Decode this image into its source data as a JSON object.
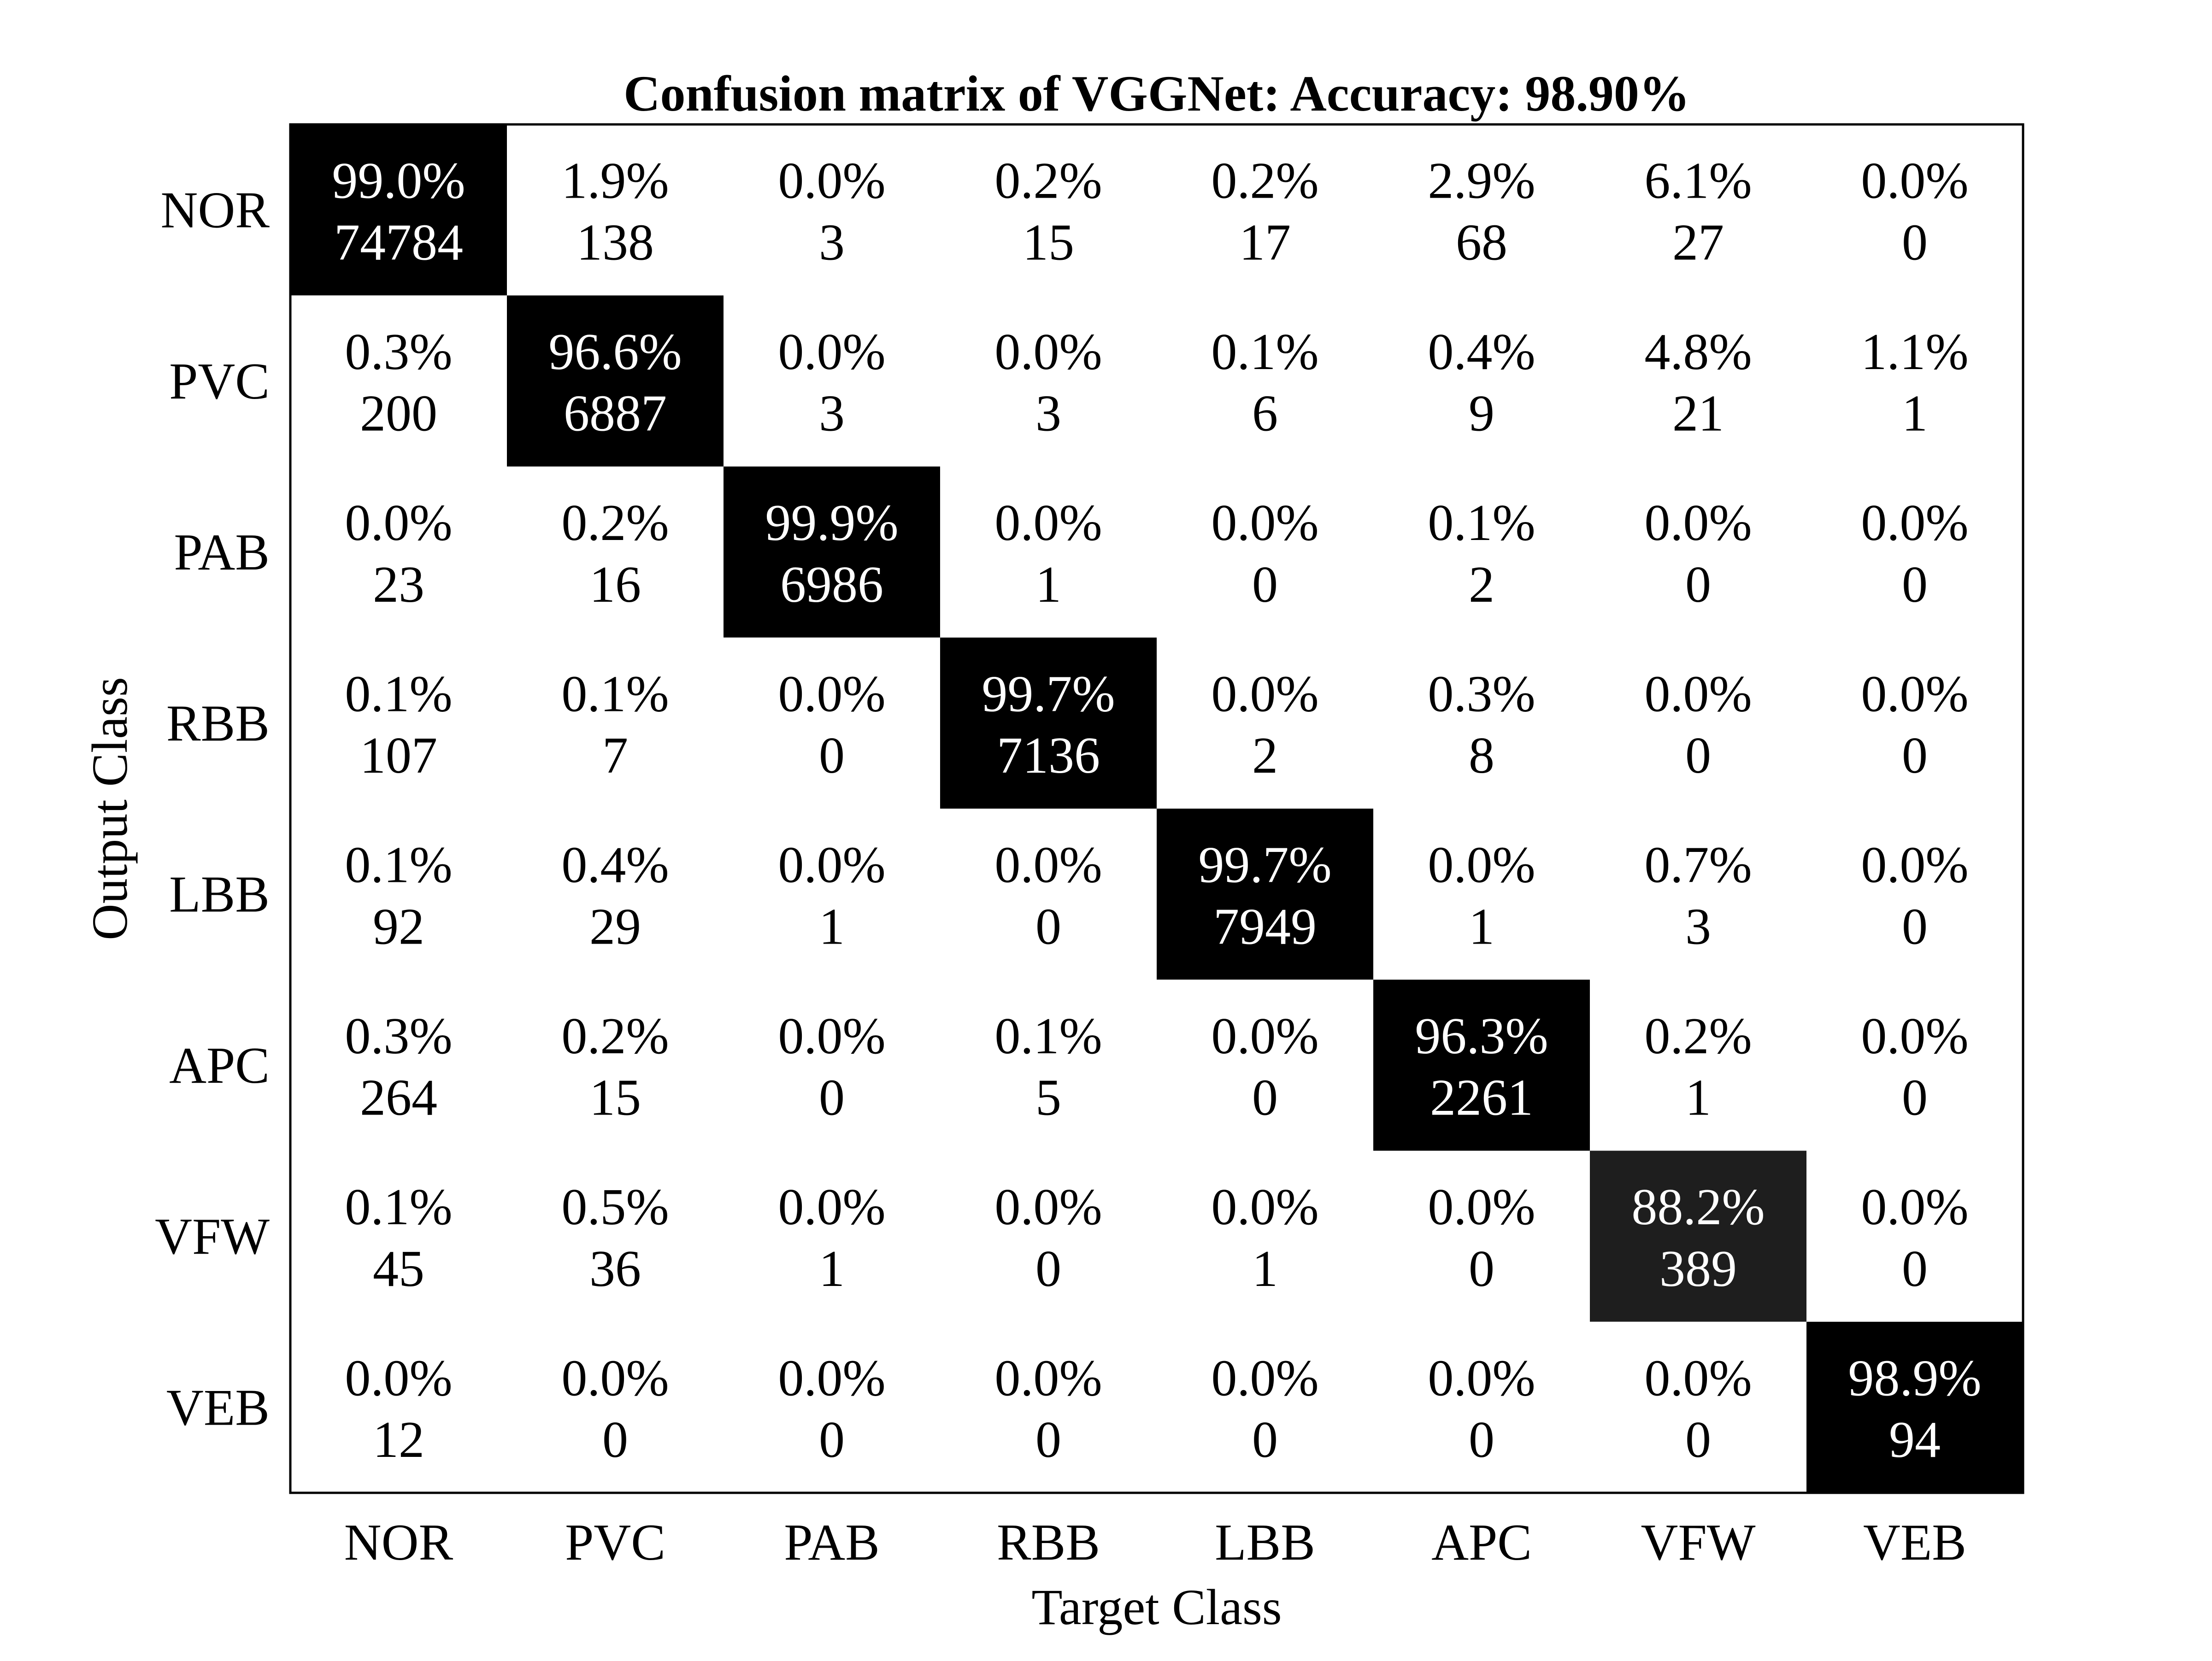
{
  "chart_data": {
    "type": "heatmap",
    "title": "Confusion matrix of VGGNet: Accuracy: 98.90%",
    "xlabel": "Target Class",
    "ylabel": "Output Class",
    "x_categories": [
      "NOR",
      "PVC",
      "PAB",
      "RBB",
      "LBB",
      "APC",
      "VFW",
      "VEB"
    ],
    "y_categories": [
      "NOR",
      "PVC",
      "PAB",
      "RBB",
      "LBB",
      "APC",
      "VFW",
      "VEB"
    ],
    "percent_labels": [
      [
        "99.0%",
        "1.9%",
        "0.0%",
        "0.2%",
        "0.2%",
        "2.9%",
        "6.1%",
        "0.0%"
      ],
      [
        "0.3%",
        "96.6%",
        "0.0%",
        "0.0%",
        "0.1%",
        "0.4%",
        "4.8%",
        "1.1%"
      ],
      [
        "0.0%",
        "0.2%",
        "99.9%",
        "0.0%",
        "0.0%",
        "0.1%",
        "0.0%",
        "0.0%"
      ],
      [
        "0.1%",
        "0.1%",
        "0.0%",
        "99.7%",
        "0.0%",
        "0.3%",
        "0.0%",
        "0.0%"
      ],
      [
        "0.1%",
        "0.4%",
        "0.0%",
        "0.0%",
        "99.7%",
        "0.0%",
        "0.7%",
        "0.0%"
      ],
      [
        "0.3%",
        "0.2%",
        "0.0%",
        "0.1%",
        "0.0%",
        "96.3%",
        "0.2%",
        "0.0%"
      ],
      [
        "0.1%",
        "0.5%",
        "0.0%",
        "0.0%",
        "0.0%",
        "0.0%",
        "88.2%",
        "0.0%"
      ],
      [
        "0.0%",
        "0.0%",
        "0.0%",
        "0.0%",
        "0.0%",
        "0.0%",
        "0.0%",
        "98.9%"
      ]
    ],
    "counts": [
      [
        74784,
        138,
        3,
        15,
        17,
        68,
        27,
        0
      ],
      [
        200,
        6887,
        3,
        3,
        6,
        9,
        21,
        1
      ],
      [
        23,
        16,
        6986,
        1,
        0,
        2,
        0,
        0
      ],
      [
        107,
        7,
        0,
        7136,
        2,
        8,
        0,
        0
      ],
      [
        92,
        29,
        1,
        0,
        7949,
        1,
        3,
        0
      ],
      [
        264,
        15,
        0,
        5,
        0,
        2261,
        1,
        0
      ],
      [
        45,
        36,
        1,
        0,
        1,
        0,
        389,
        0
      ],
      [
        12,
        0,
        0,
        0,
        0,
        0,
        0,
        94
      ]
    ],
    "color_scale": {
      "low": "#ffffff",
      "high": "#000000"
    },
    "cell_fill": {
      "diagonal_default": "#000000",
      "diagonal_VFW": "#1e1e1e",
      "off_diagonal": "#ffffff"
    },
    "text_colors": {
      "on_dark": "#ffffff",
      "on_light": "#000000"
    },
    "grid": false,
    "legend": "none"
  }
}
